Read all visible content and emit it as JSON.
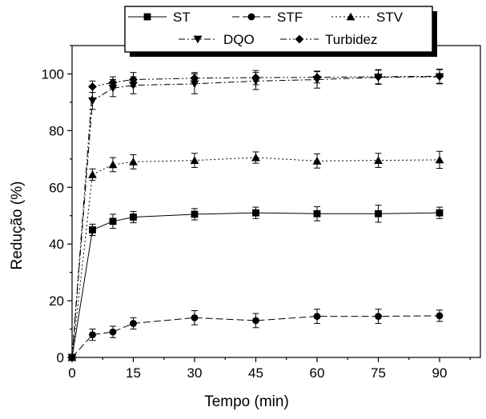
{
  "chart_data": {
    "type": "line",
    "title": "",
    "xlabel": "Tempo (min)",
    "ylabel": "Redução (%)",
    "xlim": [
      0,
      100
    ],
    "ylim": [
      0,
      110
    ],
    "xticks": [
      0,
      15,
      30,
      45,
      60,
      75,
      90
    ],
    "yticks": [
      0,
      20,
      40,
      60,
      80,
      100
    ],
    "grid": false,
    "legend_position": "top",
    "x": [
      0,
      5,
      10,
      15,
      30,
      45,
      60,
      75,
      90
    ],
    "series": [
      {
        "name": "ST",
        "marker": "square",
        "dash": "solid",
        "values": [
          0,
          45,
          48,
          49.5,
          50.5,
          51,
          50.7,
          50.7,
          51
        ],
        "errors": [
          0,
          2,
          2.5,
          2,
          2,
          2,
          2.5,
          3,
          2
        ]
      },
      {
        "name": "STF",
        "marker": "circle",
        "dash": "dashed",
        "values": [
          0,
          8,
          9,
          12,
          14,
          13,
          14.5,
          14.5,
          14.7
        ],
        "errors": [
          0,
          2,
          2,
          2,
          2.5,
          2.5,
          2.5,
          2.5,
          2
        ]
      },
      {
        "name": "STV",
        "marker": "triangle-up",
        "dash": "dotted",
        "values": [
          0,
          64.5,
          68,
          69,
          69.5,
          70.5,
          69.3,
          69.5,
          69.7
        ],
        "errors": [
          0,
          2,
          2.5,
          2.5,
          2.5,
          2,
          2.5,
          2.5,
          3
        ]
      },
      {
        "name": "DQO",
        "marker": "triangle-down",
        "dash": "dashdot",
        "values": [
          0,
          90.5,
          95,
          96,
          96.5,
          97.5,
          98,
          98.8,
          99
        ],
        "errors": [
          0,
          3,
          3,
          3,
          3.5,
          3,
          3,
          2.5,
          2.5
        ]
      },
      {
        "name": "Turbidez",
        "marker": "diamond",
        "dash": "dashdotdot",
        "values": [
          0,
          95.5,
          97,
          98,
          98.5,
          98.7,
          98.8,
          99,
          99.2
        ],
        "errors": [
          0,
          2,
          2,
          2.5,
          2,
          2.5,
          2,
          2.5,
          2.5
        ]
      }
    ]
  },
  "colors": {
    "line": "#000000",
    "background": "#ffffff"
  }
}
